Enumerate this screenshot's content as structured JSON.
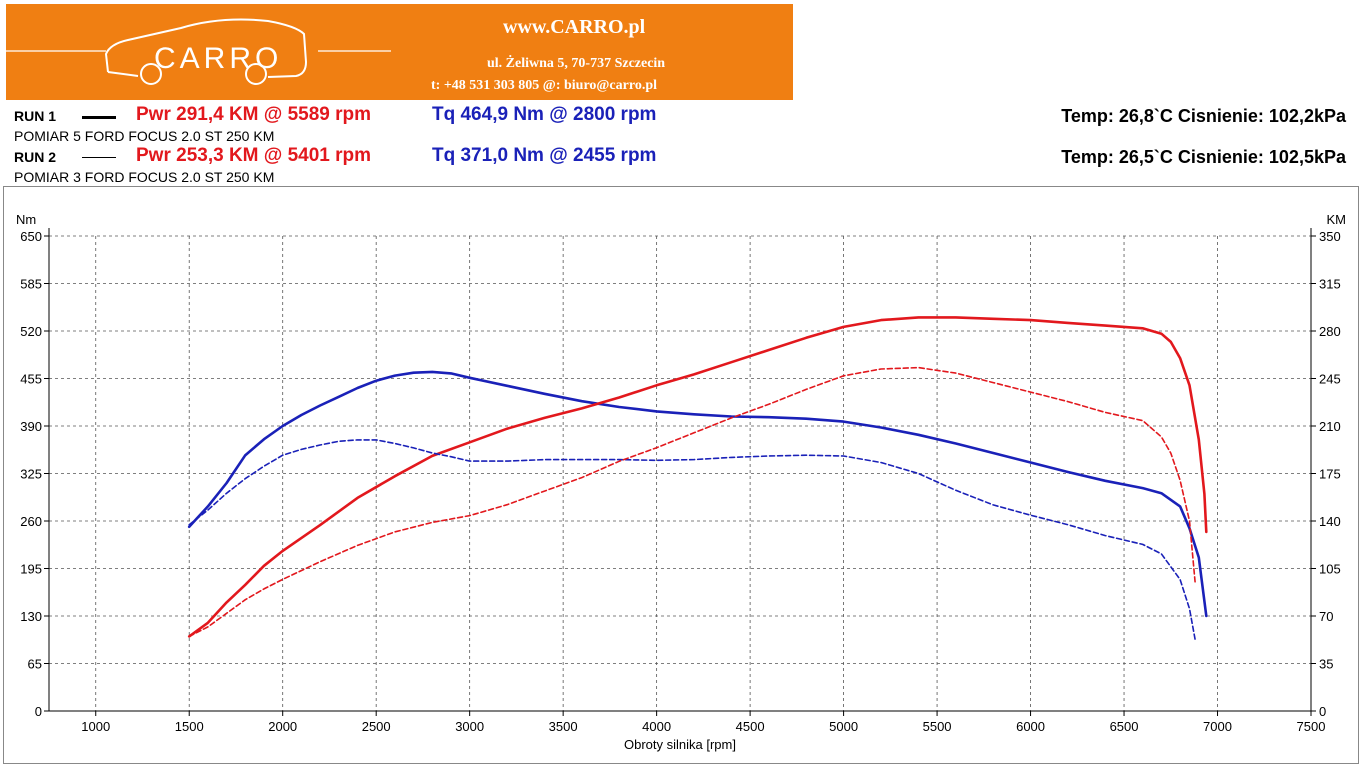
{
  "header": {
    "logo_text": "CARRO",
    "site_url": "www.CARRO.pl",
    "address": "ul. Żeliwna 5, 70-737 Szczecin",
    "contact": "t: +48 531 303 805   @: biuro@carro.pl",
    "banner_color": "#f07f12"
  },
  "runs": [
    {
      "label": "RUN 1",
      "power": "Pwr  291,4 KM @ 5589 rpm",
      "torque": "Tq 464,9 Nm @ 2800 rpm",
      "description": "POMIAR 5 FORD FOCUS 2.0 ST 250 KM",
      "conditions": "Temp: 26,8`C   Cisnienie: 102,2kPa"
    },
    {
      "label": "RUN 2",
      "power": "Pwr  253,3 KM @ 5401 rpm",
      "torque": "Tq 371,0 Nm @ 2455 rpm",
      "description": "POMIAR 3 FORD FOCUS 2.0 ST 250 KM",
      "conditions": "Temp: 26,5`C   Cisnienie: 102,5kPa"
    }
  ],
  "colors": {
    "power": "#e2181d",
    "torque": "#1a21b8"
  },
  "chart_data": {
    "type": "line",
    "xlabel": "Obroty silnika [rpm]",
    "ylabel_left": "Nm",
    "ylabel_right": "KM",
    "xlim": [
      750,
      7500
    ],
    "ylim_left": [
      0,
      650
    ],
    "ylim_right": [
      0,
      350
    ],
    "x_ticks": [
      1000,
      1500,
      2000,
      2500,
      3000,
      3500,
      4000,
      4500,
      5000,
      5500,
      6000,
      6500,
      7000,
      7500
    ],
    "y_ticks_left": [
      0,
      65,
      130,
      195,
      260,
      325,
      390,
      455,
      520,
      585,
      650
    ],
    "y_ticks_right": [
      0,
      35,
      70,
      105,
      140,
      175,
      210,
      245,
      280,
      315,
      350
    ],
    "grid": true,
    "series": [
      {
        "name": "Tq RUN 1",
        "axis": "left",
        "color": "#1a21b8",
        "style": "solid",
        "x": [
          1500,
          1600,
          1700,
          1800,
          1900,
          2000,
          2100,
          2200,
          2300,
          2400,
          2500,
          2600,
          2700,
          2800,
          2900,
          3000,
          3200,
          3400,
          3600,
          3800,
          4000,
          4200,
          4400,
          4600,
          4800,
          5000,
          5200,
          5400,
          5600,
          5800,
          6000,
          6200,
          6400,
          6600,
          6700,
          6800,
          6850,
          6900,
          6940
        ],
        "y": [
          252,
          280,
          312,
          350,
          372,
          390,
          405,
          418,
          430,
          442,
          452,
          459,
          463,
          464,
          462,
          456,
          445,
          434,
          424,
          416,
          410,
          406,
          403,
          402,
          400,
          396,
          388,
          378,
          366,
          353,
          340,
          327,
          315,
          305,
          298,
          280,
          250,
          210,
          130
        ]
      },
      {
        "name": "Pwr RUN 1",
        "axis": "right",
        "color": "#e2181d",
        "style": "solid",
        "x": [
          1500,
          1600,
          1700,
          1800,
          1900,
          2000,
          2200,
          2400,
          2600,
          2800,
          3000,
          3200,
          3400,
          3600,
          3800,
          4000,
          4200,
          4400,
          4600,
          4800,
          5000,
          5200,
          5400,
          5600,
          5800,
          6000,
          6200,
          6400,
          6600,
          6700,
          6750,
          6800,
          6850,
          6900,
          6930,
          6940
        ],
        "y": [
          55,
          65,
          80,
          93,
          107,
          118,
          137,
          157,
          173,
          188,
          198,
          208,
          216,
          223,
          231,
          240,
          248,
          257,
          266,
          275,
          283,
          288,
          290,
          290,
          289,
          288,
          286,
          284,
          282,
          278,
          272,
          260,
          240,
          200,
          160,
          132
        ]
      },
      {
        "name": "Tq RUN 2",
        "axis": "left",
        "color": "#1a21b8",
        "style": "dashed",
        "x": [
          1500,
          1600,
          1700,
          1800,
          1900,
          2000,
          2100,
          2200,
          2300,
          2400,
          2500,
          2600,
          2700,
          2800,
          2900,
          3000,
          3200,
          3400,
          3600,
          3800,
          4000,
          4200,
          4400,
          4600,
          4800,
          5000,
          5200,
          5400,
          5600,
          5800,
          6000,
          6200,
          6400,
          6600,
          6700,
          6800,
          6850,
          6880
        ],
        "y": [
          255,
          275,
          298,
          318,
          335,
          350,
          358,
          364,
          369,
          371,
          371,
          366,
          360,
          353,
          348,
          342,
          342,
          344,
          344,
          344,
          343,
          344,
          347,
          349,
          350,
          349,
          340,
          325,
          302,
          282,
          268,
          255,
          240,
          228,
          215,
          180,
          140,
          98
        ]
      },
      {
        "name": "Pwr RUN 2",
        "axis": "right",
        "color": "#e2181d",
        "style": "dashed",
        "x": [
          1500,
          1600,
          1700,
          1800,
          1900,
          2000,
          2200,
          2400,
          2600,
          2800,
          3000,
          3200,
          3400,
          3600,
          3800,
          4000,
          4200,
          4400,
          4600,
          4800,
          5000,
          5200,
          5400,
          5600,
          5800,
          6000,
          6200,
          6400,
          6600,
          6700,
          6750,
          6800,
          6850,
          6880
        ],
        "y": [
          55,
          62,
          72,
          82,
          90,
          97,
          110,
          122,
          132,
          139,
          144,
          152,
          162,
          172,
          184,
          194,
          205,
          216,
          226,
          237,
          247,
          252,
          253,
          249,
          242,
          235,
          228,
          220,
          214,
          202,
          190,
          170,
          140,
          95
        ]
      }
    ]
  }
}
